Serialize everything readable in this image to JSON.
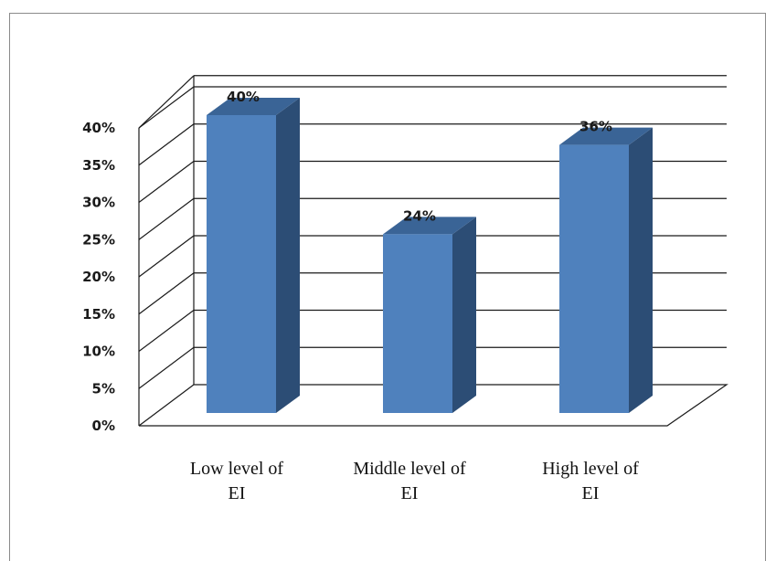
{
  "chart_data": {
    "type": "bar",
    "title": "",
    "xlabel": "",
    "ylabel": "",
    "categories": [
      [
        "Low level of",
        "EI"
      ],
      [
        "Middle level of",
        "EI"
      ],
      [
        "High level of",
        "EI"
      ]
    ],
    "values": [
      40,
      24,
      36
    ],
    "data_labels": [
      "40%",
      "24%",
      "36%"
    ],
    "ylim": [
      0,
      40
    ],
    "yticks": [
      "0%",
      "5%",
      "10%",
      "15%",
      "20%",
      "25%",
      "30%",
      "35%",
      "40%"
    ],
    "grid": true,
    "three_d": true,
    "colors": {
      "bar_front": "#4f81bd",
      "bar_side": "#2c4d75",
      "bar_top": "#3a6496",
      "grid": "#1a1a1a"
    }
  }
}
